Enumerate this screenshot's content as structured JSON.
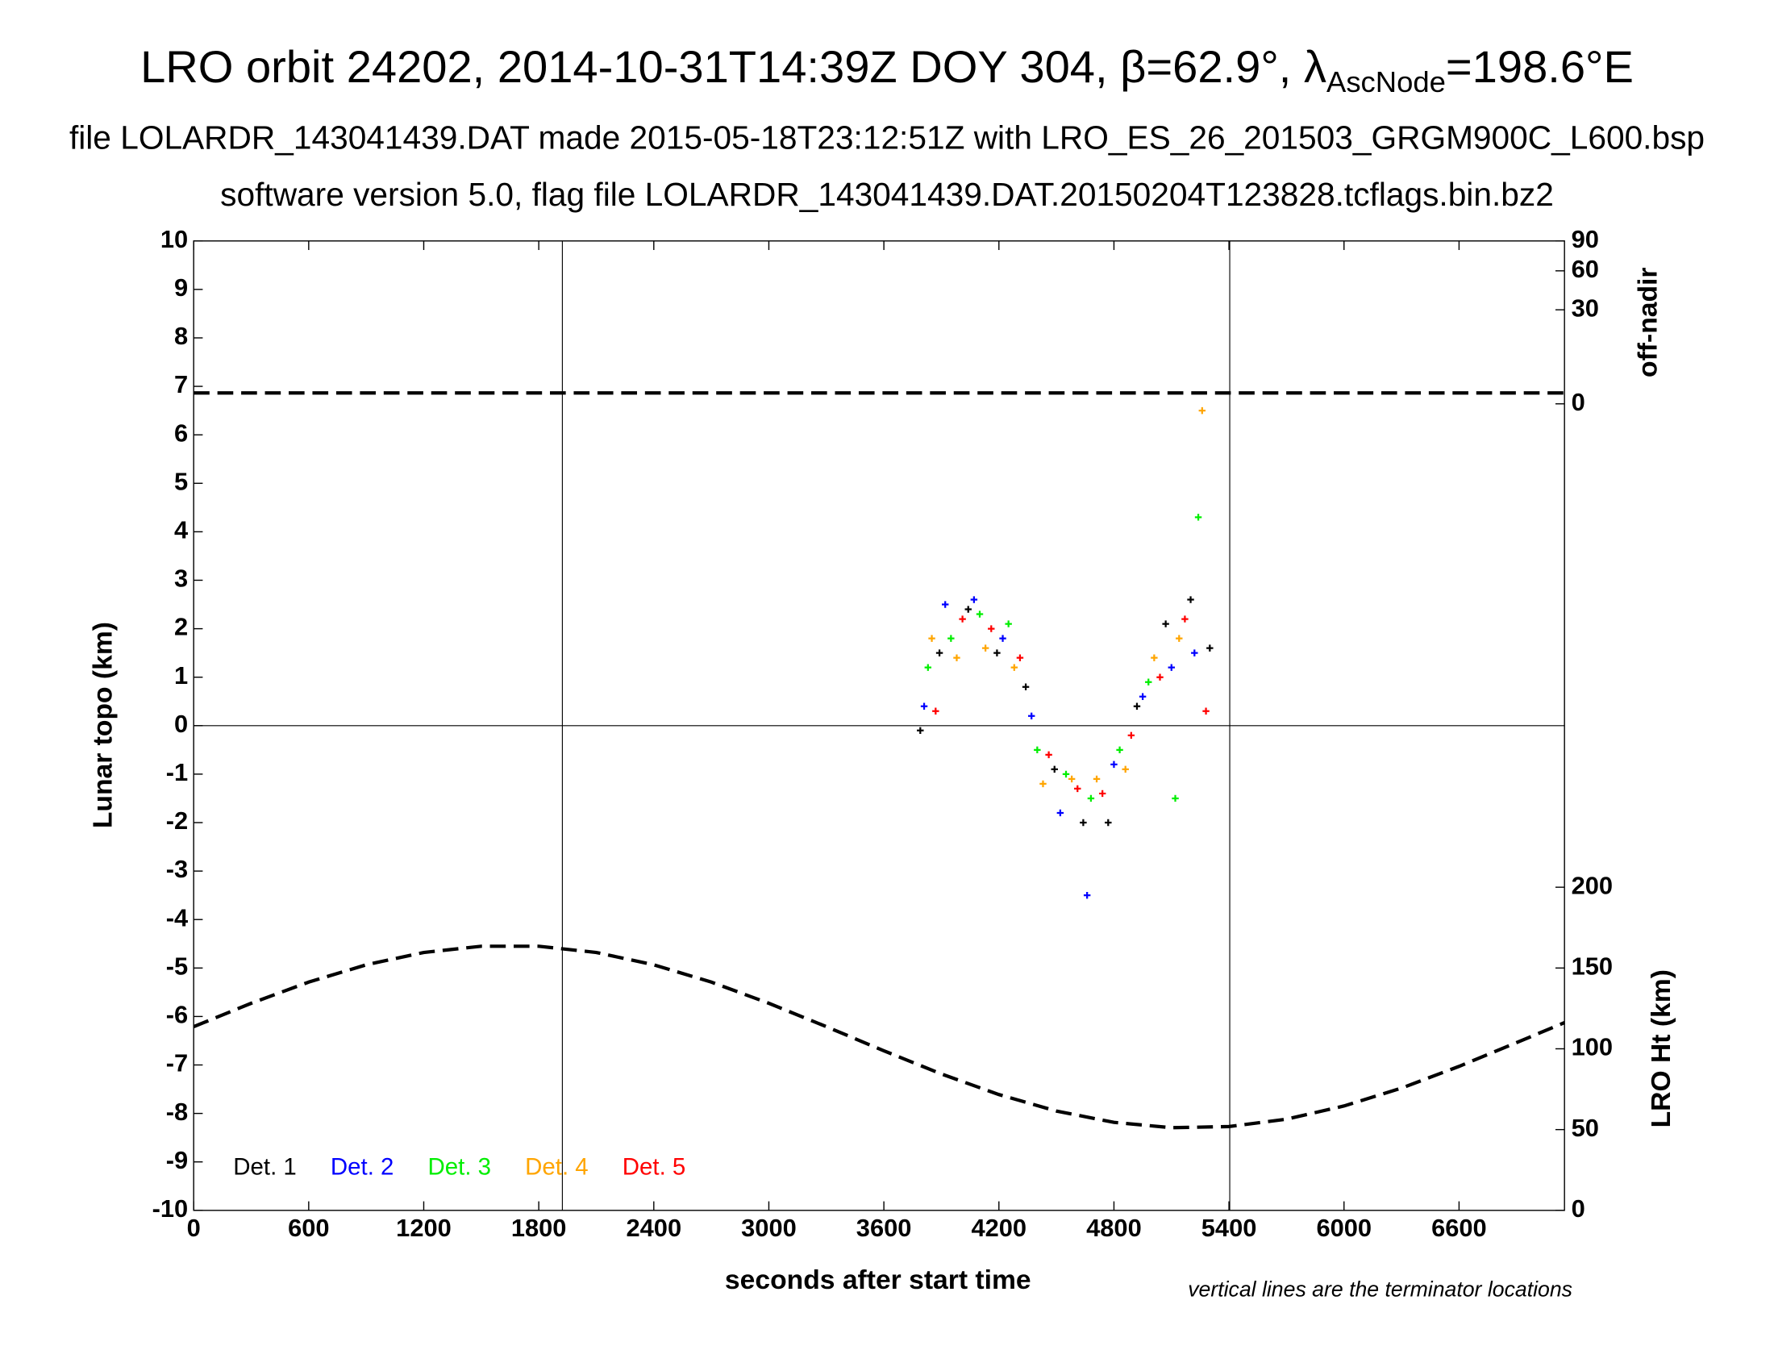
{
  "chart_data": {
    "type": "scatter",
    "title": "LRO orbit 24202, 2014-10-31T14:39Z DOY 304, β=62.9°, λ",
    "title_subscript": "AscNode",
    "title_end": "=198.6°E",
    "subtitle": "file LOLARDR_143041439.DAT made 2015-05-18T23:12:51Z with LRO_ES_26_201503_GRGM900C_L600.bsp",
    "subtitle2": "software version 5.0, flag file LOLARDR_143041439.DAT.20150204T123828.tcflags.bin.bz2",
    "x_label": "seconds after start time",
    "y_label": "Lunar topo (km)",
    "y2_label": "LRO Ht (km)",
    "y3_label": "off-nadir",
    "note": "vertical lines are the terminator locations",
    "xlim": [
      0,
      7150
    ],
    "xticks": [
      0,
      600,
      1200,
      1800,
      2400,
      3000,
      3600,
      4200,
      4800,
      5400,
      6000,
      6600
    ],
    "ylim": [
      -10,
      10
    ],
    "yticks": [
      -10,
      -9,
      -8,
      -7,
      -6,
      -5,
      -4,
      -3,
      -2,
      -1,
      0,
      1,
      2,
      3,
      4,
      5,
      6,
      7,
      8,
      9,
      10
    ],
    "y2lim": [
      0,
      600
    ],
    "y2ticks": [
      0,
      50,
      100,
      150,
      200
    ],
    "y3lim": [
      0,
      90
    ],
    "y3ticks": [
      0,
      30,
      60,
      90
    ],
    "y3scale": "sqrt",
    "hlines": [
      0
    ],
    "terminators": [
      1923,
      5404
    ],
    "series": [
      {
        "name": "Det. 1",
        "color": "#000000",
        "x": [
          3790,
          3890,
          4040,
          4190,
          4340,
          4490,
          4640,
          4770,
          4920,
          5070,
          5200,
          5300
        ],
        "values": [
          -0.1,
          1.5,
          2.4,
          1.5,
          0.8,
          -0.9,
          -2.0,
          -2.0,
          0.4,
          2.1,
          2.6,
          1.6
        ]
      },
      {
        "name": "Det. 2",
        "color": "#0000ff",
        "x": [
          3810,
          3920,
          4070,
          4220,
          4370,
          4520,
          4660,
          4800,
          4950,
          5100,
          5220
        ],
        "values": [
          0.4,
          2.5,
          2.6,
          1.8,
          0.2,
          -1.8,
          -3.5,
          -0.8,
          0.6,
          1.2,
          1.5
        ]
      },
      {
        "name": "Det. 3",
        "color": "#00ee00",
        "x": [
          3830,
          3950,
          4100,
          4250,
          4400,
          4550,
          4680,
          4830,
          4980,
          5120,
          5240
        ],
        "values": [
          1.2,
          1.8,
          2.3,
          2.1,
          -0.5,
          -1.0,
          -1.5,
          -0.5,
          0.9,
          -1.5,
          4.3
        ]
      },
      {
        "name": "Det. 4",
        "color": "#ffa500",
        "x": [
          3850,
          3980,
          4130,
          4280,
          4430,
          4580,
          4710,
          4860,
          5010,
          5140,
          5260
        ],
        "values": [
          1.8,
          1.4,
          1.6,
          1.2,
          -1.2,
          -1.1,
          -1.1,
          -0.9,
          1.4,
          1.8,
          6.5
        ]
      },
      {
        "name": "Det. 5",
        "color": "#ff0000",
        "x": [
          3870,
          4010,
          4160,
          4310,
          4460,
          4610,
          4740,
          4890,
          5040,
          5170,
          5280
        ],
        "values": [
          0.3,
          2.2,
          2.0,
          1.4,
          -0.6,
          -1.3,
          -1.4,
          -0.2,
          1.0,
          2.2,
          0.3
        ]
      }
    ],
    "height_line": {
      "axis": "y2",
      "color": "#000000",
      "x": [
        0,
        300,
        600,
        900,
        1200,
        1500,
        1800,
        2100,
        2400,
        2700,
        3000,
        3300,
        3600,
        3900,
        4200,
        4500,
        4800,
        5100,
        5400,
        5700,
        6000,
        6300,
        6600,
        6900,
        7150
      ],
      "values": [
        113.7,
        128.2,
        141.3,
        152.0,
        159.6,
        163.5,
        163.5,
        159.6,
        152.0,
        141.3,
        128.2,
        113.7,
        98.8,
        84.4,
        71.7,
        61.5,
        54.5,
        51.2,
        51.9,
        56.4,
        64.6,
        75.7,
        89.1,
        103.8,
        116.2
      ]
    },
    "offnadir_line": {
      "axis": "y3",
      "color": "#000000",
      "x": [
        0,
        7150
      ],
      "values": [
        0.4,
        0.4
      ]
    }
  }
}
